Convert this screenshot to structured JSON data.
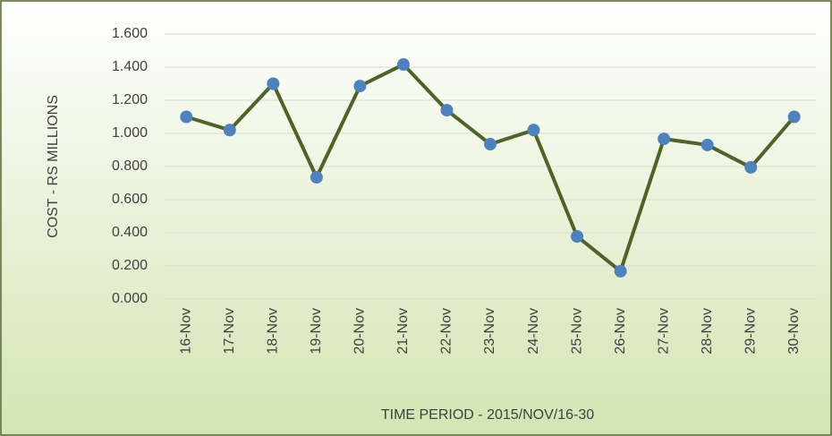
{
  "chart_data": {
    "type": "line",
    "x_label": "TIME PERIOD -  2015/NOV/16-30",
    "y_label": "COST - RS  MILLIONS",
    "categories": [
      "16-Nov",
      "17-Nov",
      "18-Nov",
      "19-Nov",
      "20-Nov",
      "21-Nov",
      "22-Nov",
      "23-Nov",
      "24-Nov",
      "25-Nov",
      "26-Nov",
      "27-Nov",
      "28-Nov",
      "29-Nov",
      "30-Nov"
    ],
    "values": [
      1.1,
      1.02,
      1.3,
      0.735,
      1.286,
      1.416,
      1.14,
      0.935,
      1.02,
      0.378,
      0.168,
      0.967,
      0.93,
      0.795,
      1.1
    ],
    "color": "#4f6228",
    "marker_color": "#4f81bd",
    "ylim": [
      0,
      1.6
    ],
    "yticks": [
      {
        "value": 0,
        "label": "0.000"
      },
      {
        "value": 0.2,
        "label": "0.200"
      },
      {
        "value": 0.4,
        "label": "0.400"
      },
      {
        "value": 0.6,
        "label": "0.600"
      },
      {
        "value": 0.8,
        "label": "0.800"
      },
      {
        "value": 1.0,
        "label": "1.000"
      },
      {
        "value": 1.2,
        "label": "1.200"
      },
      {
        "value": 1.4,
        "label": "1.400"
      },
      {
        "value": 1.6,
        "label": "1.600"
      }
    ],
    "grid": true
  }
}
